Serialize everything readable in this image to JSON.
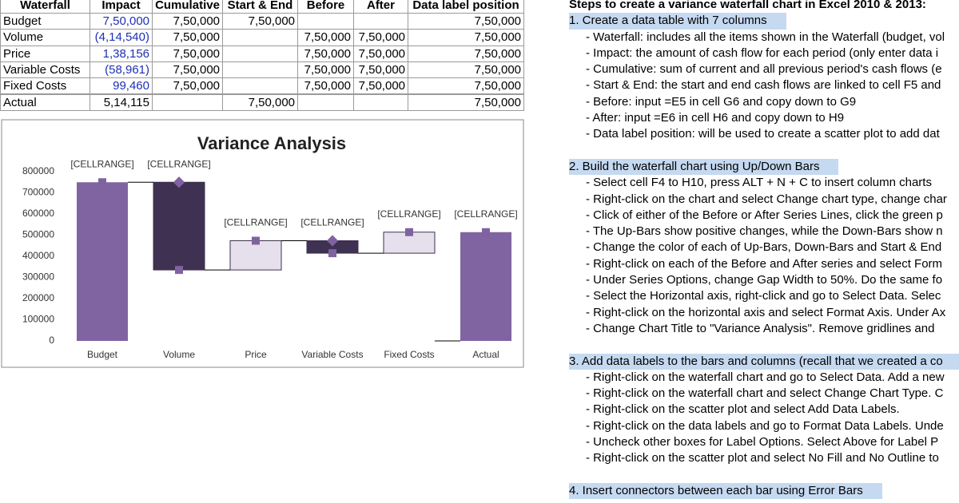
{
  "table": {
    "header": [
      "Waterfall",
      "Impact",
      "Cumulative",
      "Start & End",
      "Before",
      "After",
      "Data label position"
    ],
    "rows": [
      [
        "Budget",
        "7,50,000",
        "7,50,000",
        "7,50,000",
        null,
        null,
        "7,50,000"
      ],
      [
        "Volume",
        "(4,14,540)",
        "7,50,000",
        null,
        "7,50,000",
        "7,50,000",
        "7,50,000"
      ],
      [
        "Price",
        "1,38,156",
        "7,50,000",
        null,
        "7,50,000",
        "7,50,000",
        "7,50,000"
      ],
      [
        "Variable Costs",
        "(58,961)",
        "7,50,000",
        null,
        "7,50,000",
        "7,50,000",
        "7,50,000"
      ],
      [
        "Fixed Costs",
        "99,460",
        "7,50,000",
        null,
        "7,50,000",
        "7,50,000",
        "7,50,000"
      ],
      [
        "Actual",
        "5,14,115",
        null,
        "7,50,000",
        null,
        null,
        "7,50,000"
      ]
    ]
  },
  "chart_data": {
    "type": "waterfall",
    "title": "Variance Analysis",
    "categories": [
      "Budget",
      "Volume",
      "Price",
      "Variable Costs",
      "Fixed Costs",
      "Actual"
    ],
    "values": [
      750000,
      -414540,
      138156,
      -58961,
      99460,
      514115
    ],
    "total": [
      true,
      false,
      false,
      false,
      false,
      true
    ],
    "data_labels": [
      "[CELLRANGE]",
      "[CELLRANGE]",
      "[CELLRANGE]",
      "[CELLRANGE]",
      "[CELLRANGE]",
      "[CELLRANGE]"
    ],
    "colors": {
      "total": "#8064a2",
      "increase": "#e6e0ec",
      "decrease": "#3f3151",
      "marker": "#7f63a1"
    },
    "ylim": [
      0,
      800000
    ],
    "yticks": [
      0,
      100000,
      200000,
      300000,
      400000,
      500000,
      600000,
      700000,
      800000
    ],
    "grid": false
  },
  "steps": {
    "title": "Steps to create a variance waterfall chart in Excel 2010 & 2013:",
    "sections": [
      {
        "heading": "1. Create a data table with 7 columns",
        "items": [
          "- Waterfall: includes all the items shown in the Waterfall (budget, vol",
          "- Impact: the amount of cash flow for each period (only enter data i",
          "- Cumulative: sum of current and all previous period's cash flows (e",
          "- Start & End: the start and end cash flows are linked to cell F5 and",
          "- Before: input =E5 in cell G6 and copy down to G9",
          "- After: input =E6 in cell H6 and copy down to H9",
          "- Data label position: will be used to create a scatter plot to add dat"
        ]
      },
      {
        "heading": "2. Build the waterfall chart using Up/Down Bars",
        "items": [
          "- Select cell F4 to H10, press ALT + N + C to insert column charts",
          "- Right-click on the chart and select Change chart type, change char",
          "- Click of either of the Before or After Series Lines, click the green p",
          "- The Up-Bars show positive changes, while the Down-Bars show n",
          "- Change the color of each of Up-Bars, Down-Bars and Start & End",
          "- Right-click on each of the Before and After series and select Form",
          "- Under Series Options, change Gap Width to 50%. Do the same fo",
          "- Select the Horizontal axis, right-click and go to Select Data. Selec",
          "- Right-click on the horizontal axis and select Format Axis. Under Ax",
          "- Change Chart Title to \"Variance Analysis\". Remove gridlines and"
        ]
      },
      {
        "heading": "3. Add data labels to the bars and columns (recall that we created a co",
        "items": [
          "- Right-click on the waterfall chart and go to Select Data. Add a new",
          "- Right-click on the waterfall chart and select Change Chart Type. C",
          "- Right-click on the scatter plot and select Add Data Labels.",
          "- Right-click on the data labels and go to Format Data Labels. Unde",
          "- Uncheck other boxes for Label Options. Select Above for Label P",
          "- Right-click on the scatter plot and select No Fill and No Outline to"
        ]
      },
      {
        "heading": "4. Insert connectors between each bar using Error Bars",
        "items": []
      }
    ]
  }
}
